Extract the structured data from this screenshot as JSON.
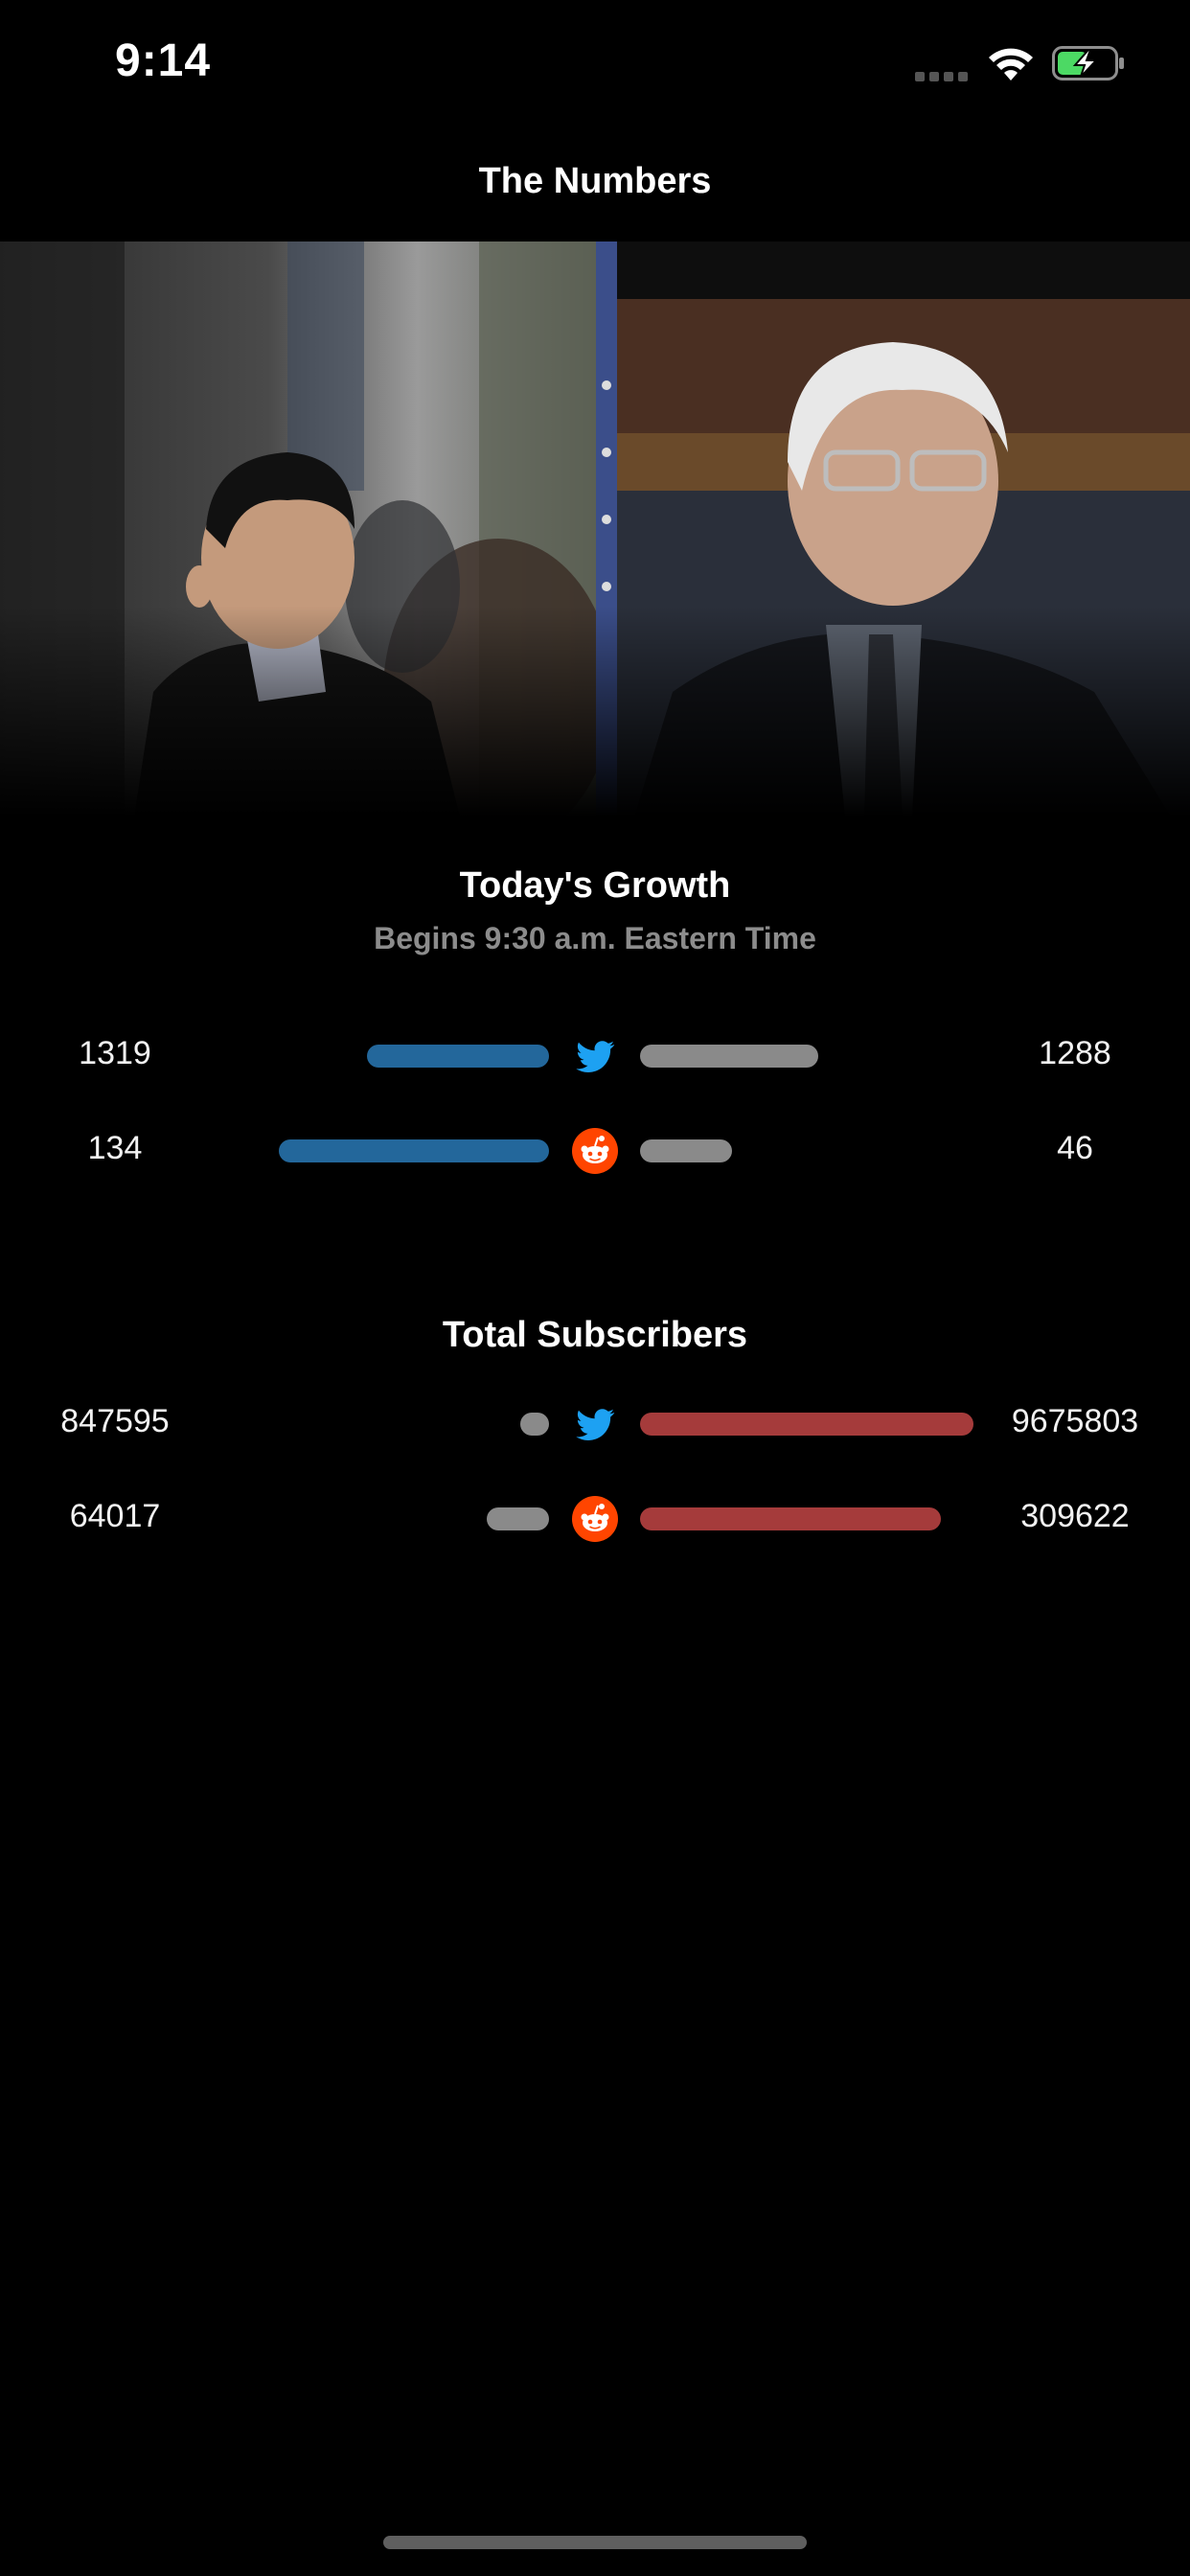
{
  "status_bar": {
    "time": "9:14"
  },
  "nav": {
    "title": "The Numbers"
  },
  "hero": {
    "left_photo": "candidate-left-photo",
    "right_photo": "candidate-right-photo"
  },
  "growth": {
    "title": "Today's Growth",
    "subtitle": "Begins 9:30 a.m. Eastern Time",
    "rows": [
      {
        "platform": "twitter",
        "icon": "twitter-bird-icon",
        "left_value": "1319",
        "right_value": "1288",
        "left_bar_fraction": 0.57,
        "right_bar_fraction": 0.55
      },
      {
        "platform": "reddit",
        "icon": "reddit-alien-icon",
        "left_value": "134",
        "right_value": "46",
        "left_bar_fraction": 0.84,
        "right_bar_fraction": 0.29
      }
    ]
  },
  "subscribers": {
    "title": "Total Subscribers",
    "rows": [
      {
        "platform": "twitter",
        "icon": "twitter-bird-icon",
        "left_value": "847595",
        "right_value": "9675803",
        "left_bar_fraction": 0.09,
        "right_bar_fraction": 1.0
      },
      {
        "platform": "reddit",
        "icon": "reddit-alien-icon",
        "left_value": "64017",
        "right_value": "309622",
        "left_bar_fraction": 0.21,
        "right_bar_fraction": 0.9
      }
    ]
  },
  "colors": {
    "background": "#000000",
    "left_bar": "#23679b",
    "neutral_bar": "#8a8a8a",
    "right_bar": "#a53b3b",
    "twitter_blue": "#1da1f2",
    "reddit_orange": "#ff4500",
    "subtitle_gray": "#8c8c8c",
    "battery_green": "#4cd964"
  }
}
